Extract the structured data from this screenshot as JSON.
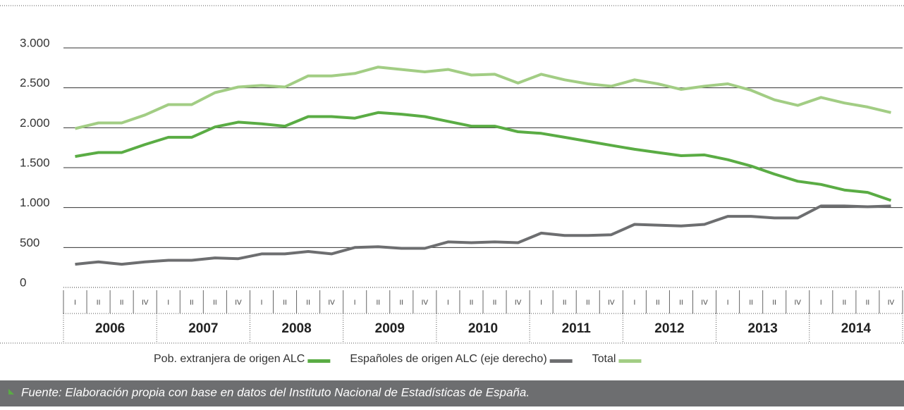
{
  "chart_data": {
    "type": "line",
    "categories": [
      "I",
      "II",
      "II",
      "IV",
      "I",
      "II",
      "II",
      "IV",
      "I",
      "II",
      "II",
      "IV",
      "I",
      "II",
      "II",
      "IV",
      "I",
      "II",
      "II",
      "IV",
      "I",
      "II",
      "II",
      "IV",
      "I",
      "II",
      "II",
      "IV",
      "I",
      "II",
      "II",
      "IV",
      "I",
      "II",
      "II",
      "IV"
    ],
    "years": [
      "2006",
      "2007",
      "2008",
      "2009",
      "2010",
      "2011",
      "2012",
      "2013",
      "2014"
    ],
    "series": [
      {
        "name": "Pob. extranjera de origen ALC",
        "color": "#5aac44",
        "values": [
          1640,
          1690,
          1690,
          1790,
          1880,
          1880,
          2010,
          2070,
          2050,
          2020,
          2140,
          2140,
          2120,
          2190,
          2170,
          2140,
          2080,
          2020,
          2020,
          1950,
          1930,
          1880,
          1830,
          1780,
          1730,
          1690,
          1650,
          1660,
          1600,
          1520,
          1420,
          1330,
          1290,
          1220,
          1190,
          1090
        ]
      },
      {
        "name": "Españoles de origen ALC (eje derecho)",
        "color": "#6d6e70",
        "values": [
          290,
          320,
          290,
          320,
          340,
          340,
          370,
          360,
          420,
          420,
          450,
          420,
          500,
          510,
          490,
          490,
          570,
          560,
          570,
          560,
          680,
          650,
          650,
          660,
          790,
          780,
          770,
          790,
          890,
          890,
          870,
          870,
          1020,
          1020,
          1010,
          1020
        ]
      },
      {
        "name": "Total",
        "color": "#a2cd84",
        "values": [
          1990,
          2060,
          2060,
          2160,
          2290,
          2290,
          2440,
          2510,
          2530,
          2510,
          2650,
          2650,
          2680,
          2760,
          2730,
          2700,
          2730,
          2660,
          2670,
          2560,
          2670,
          2600,
          2550,
          2520,
          2600,
          2550,
          2480,
          2520,
          2550,
          2470,
          2350,
          2280,
          2380,
          2310,
          2260,
          2190
        ]
      }
    ],
    "ylim": [
      0,
      3000
    ],
    "yticks": [
      0,
      500,
      {
        "value": 1000,
        "label": "1.000"
      },
      {
        "value": 1500,
        "label": "1.500"
      },
      {
        "value": 2000,
        "label": "2.000"
      },
      {
        "value": 2500,
        "label": "2.500"
      },
      {
        "value": 3000,
        "label": "3.000"
      }
    ],
    "grid": true,
    "legend": "bottom",
    "source": "Fuente: Elaboración propia con base en datos del Instituto Nacional de Estadísticas de España."
  }
}
